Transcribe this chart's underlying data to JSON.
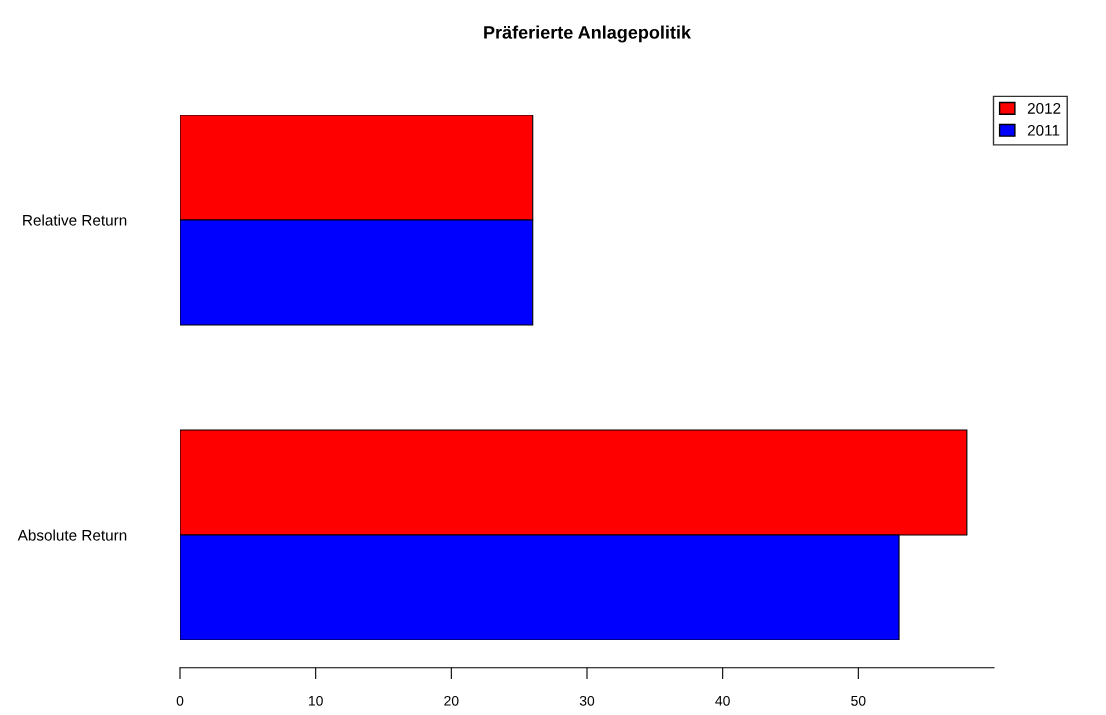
{
  "chart_data": {
    "type": "bar",
    "orientation": "horizontal",
    "title": "Präferierte Anlagepolitik",
    "categories": [
      "Relative Return",
      "Absolute Return"
    ],
    "series": [
      {
        "name": "2012",
        "color": "#ff0000",
        "values": [
          26,
          58
        ]
      },
      {
        "name": "2011",
        "color": "#0000ff",
        "values": [
          26,
          53
        ]
      }
    ],
    "xlim": [
      0,
      60
    ],
    "xticks": [
      0,
      10,
      20,
      30,
      40,
      50
    ],
    "grid": false,
    "legend": "top right"
  }
}
